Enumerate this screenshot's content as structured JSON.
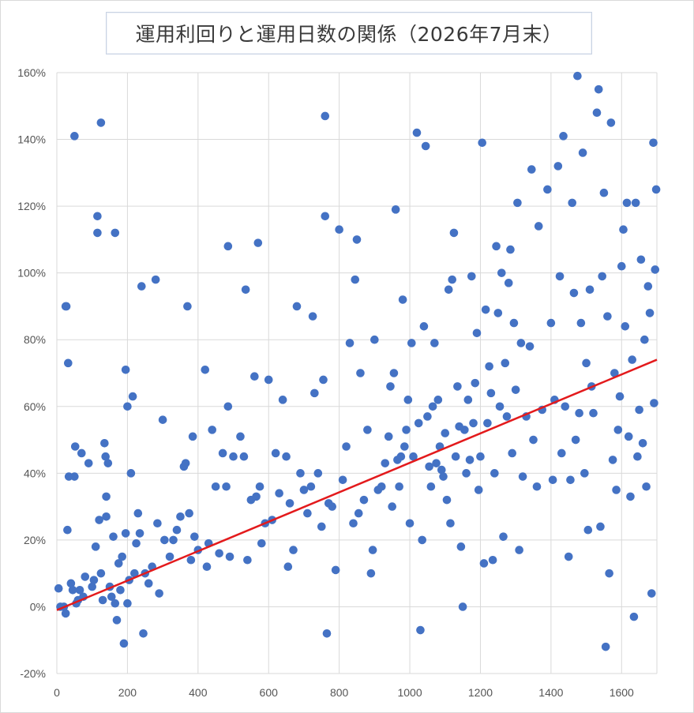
{
  "chart_data": {
    "type": "scatter",
    "title": "運用利回りと運用日数の関係（2026年7月末）",
    "xlabel": "",
    "ylabel": "",
    "xlim": [
      0,
      1700
    ],
    "ylim": [
      -0.2,
      1.6
    ],
    "x_ticks": [
      "0",
      "200",
      "400",
      "600",
      "800",
      "1000",
      "1200",
      "1400",
      "1600"
    ],
    "y_ticks": [
      "-20%",
      "0%",
      "20%",
      "40%",
      "60%",
      "80%",
      "100%",
      "120%",
      "140%",
      "160%"
    ],
    "grid": true,
    "legend": "none",
    "colors": {
      "points": "#4472c4",
      "trendline": "#e31a1c",
      "grid": "#d9d9d9"
    },
    "trendline": {
      "type": "linear",
      "x": [
        0,
        1700
      ],
      "y": [
        -0.01,
        0.74
      ]
    },
    "series": [
      {
        "points": [
          [
            5,
            0.055
          ],
          [
            10,
            0
          ],
          [
            20,
            0
          ],
          [
            25,
            -0.02
          ],
          [
            25,
            0.9
          ],
          [
            27,
            0.9
          ],
          [
            30,
            0.23
          ],
          [
            32,
            0.73
          ],
          [
            34,
            0.39
          ],
          [
            40,
            0.07
          ],
          [
            45,
            0.05
          ],
          [
            50,
            1.41
          ],
          [
            50,
            0.39
          ],
          [
            52,
            0.48
          ],
          [
            55,
            0.01
          ],
          [
            60,
            0.02
          ],
          [
            65,
            0.05
          ],
          [
            70,
            0.46
          ],
          [
            75,
            0.03
          ],
          [
            80,
            0.09
          ],
          [
            90,
            0.43
          ],
          [
            100,
            0.06
          ],
          [
            105,
            0.08
          ],
          [
            110,
            0.18
          ],
          [
            115,
            1.17
          ],
          [
            115,
            1.12
          ],
          [
            120,
            0.26
          ],
          [
            125,
            1.45
          ],
          [
            125,
            0.1
          ],
          [
            130,
            0.02
          ],
          [
            135,
            0.49
          ],
          [
            138,
            0.45
          ],
          [
            140,
            0.33
          ],
          [
            140,
            0.27
          ],
          [
            145,
            0.43
          ],
          [
            150,
            0.06
          ],
          [
            155,
            0.03
          ],
          [
            160,
            0.21
          ],
          [
            165,
            1.12
          ],
          [
            165,
            0.01
          ],
          [
            170,
            -0.04
          ],
          [
            175,
            0.13
          ],
          [
            180,
            0.05
          ],
          [
            185,
            0.15
          ],
          [
            190,
            -0.11
          ],
          [
            195,
            0.22
          ],
          [
            195,
            0.71
          ],
          [
            200,
            0.01
          ],
          [
            200,
            0.6
          ],
          [
            205,
            0.08
          ],
          [
            210,
            0.4
          ],
          [
            215,
            0.63
          ],
          [
            220,
            0.1
          ],
          [
            225,
            0.19
          ],
          [
            230,
            0.28
          ],
          [
            235,
            0.22
          ],
          [
            240,
            0.96
          ],
          [
            245,
            -0.08
          ],
          [
            250,
            0.1
          ],
          [
            260,
            0.07
          ],
          [
            270,
            0.12
          ],
          [
            280,
            0.98
          ],
          [
            285,
            0.25
          ],
          [
            290,
            0.04
          ],
          [
            300,
            0.56
          ],
          [
            305,
            0.2
          ],
          [
            320,
            0.15
          ],
          [
            330,
            0.2
          ],
          [
            340,
            0.23
          ],
          [
            350,
            0.27
          ],
          [
            360,
            0.42
          ],
          [
            365,
            0.43
          ],
          [
            370,
            0.9
          ],
          [
            375,
            0.28
          ],
          [
            380,
            0.14
          ],
          [
            385,
            0.51
          ],
          [
            390,
            0.21
          ],
          [
            400,
            0.17
          ],
          [
            420,
            0.71
          ],
          [
            425,
            0.12
          ],
          [
            430,
            0.19
          ],
          [
            440,
            0.53
          ],
          [
            450,
            0.36
          ],
          [
            460,
            0.16
          ],
          [
            470,
            0.46
          ],
          [
            480,
            0.36
          ],
          [
            485,
            1.08
          ],
          [
            485,
            0.6
          ],
          [
            490,
            0.15
          ],
          [
            500,
            0.45
          ],
          [
            520,
            0.51
          ],
          [
            530,
            0.45
          ],
          [
            535,
            0.95
          ],
          [
            540,
            0.14
          ],
          [
            550,
            0.32
          ],
          [
            560,
            0.69
          ],
          [
            565,
            0.33
          ],
          [
            570,
            1.09
          ],
          [
            575,
            0.36
          ],
          [
            580,
            0.19
          ],
          [
            590,
            0.25
          ],
          [
            600,
            0.68
          ],
          [
            610,
            0.26
          ],
          [
            620,
            0.46
          ],
          [
            630,
            0.34
          ],
          [
            640,
            0.62
          ],
          [
            650,
            0.45
          ],
          [
            655,
            0.12
          ],
          [
            660,
            0.31
          ],
          [
            670,
            0.17
          ],
          [
            680,
            0.9
          ],
          [
            690,
            0.4
          ],
          [
            700,
            0.35
          ],
          [
            710,
            0.28
          ],
          [
            720,
            0.36
          ],
          [
            725,
            0.87
          ],
          [
            730,
            0.64
          ],
          [
            740,
            0.4
          ],
          [
            750,
            0.24
          ],
          [
            755,
            0.68
          ],
          [
            760,
            1.47
          ],
          [
            765,
            -0.08
          ],
          [
            760,
            1.17
          ],
          [
            770,
            0.31
          ],
          [
            780,
            0.3
          ],
          [
            790,
            0.11
          ],
          [
            800,
            1.13
          ],
          [
            810,
            0.38
          ],
          [
            820,
            0.48
          ],
          [
            830,
            0.79
          ],
          [
            840,
            0.25
          ],
          [
            845,
            0.98
          ],
          [
            850,
            1.1
          ],
          [
            855,
            0.28
          ],
          [
            860,
            0.7
          ],
          [
            870,
            0.32
          ],
          [
            880,
            0.53
          ],
          [
            890,
            0.1
          ],
          [
            895,
            0.17
          ],
          [
            900,
            0.8
          ],
          [
            910,
            0.35
          ],
          [
            920,
            0.36
          ],
          [
            930,
            0.43
          ],
          [
            940,
            0.51
          ],
          [
            945,
            0.66
          ],
          [
            950,
            0.3
          ],
          [
            955,
            0.7
          ],
          [
            960,
            1.19
          ],
          [
            965,
            0.44
          ],
          [
            970,
            0.36
          ],
          [
            975,
            0.45
          ],
          [
            980,
            0.92
          ],
          [
            985,
            0.48
          ],
          [
            990,
            0.53
          ],
          [
            995,
            0.62
          ],
          [
            1000,
            0.25
          ],
          [
            1005,
            0.79
          ],
          [
            1010,
            0.45
          ],
          [
            1020,
            1.42
          ],
          [
            1025,
            0.55
          ],
          [
            1030,
            -0.07
          ],
          [
            1035,
            0.2
          ],
          [
            1040,
            0.84
          ],
          [
            1045,
            1.38
          ],
          [
            1050,
            0.57
          ],
          [
            1055,
            0.42
          ],
          [
            1060,
            0.36
          ],
          [
            1065,
            0.6
          ],
          [
            1070,
            0.79
          ],
          [
            1075,
            0.43
          ],
          [
            1080,
            0.62
          ],
          [
            1085,
            0.48
          ],
          [
            1090,
            0.41
          ],
          [
            1095,
            0.39
          ],
          [
            1100,
            0.52
          ],
          [
            1105,
            0.32
          ],
          [
            1110,
            0.95
          ],
          [
            1115,
            0.25
          ],
          [
            1120,
            0.98
          ],
          [
            1125,
            1.12
          ],
          [
            1130,
            0.45
          ],
          [
            1135,
            0.66
          ],
          [
            1140,
            0.54
          ],
          [
            1145,
            0.18
          ],
          [
            1150,
            0.0
          ],
          [
            1155,
            0.53
          ],
          [
            1160,
            0.4
          ],
          [
            1165,
            0.62
          ],
          [
            1170,
            0.44
          ],
          [
            1175,
            0.99
          ],
          [
            1180,
            0.55
          ],
          [
            1185,
            0.67
          ],
          [
            1190,
            0.82
          ],
          [
            1195,
            0.35
          ],
          [
            1200,
            0.45
          ],
          [
            1205,
            1.39
          ],
          [
            1210,
            0.13
          ],
          [
            1215,
            0.89
          ],
          [
            1220,
            0.55
          ],
          [
            1225,
            0.72
          ],
          [
            1230,
            0.64
          ],
          [
            1235,
            0.14
          ],
          [
            1240,
            0.4
          ],
          [
            1245,
            1.08
          ],
          [
            1250,
            0.88
          ],
          [
            1255,
            0.6
          ],
          [
            1260,
            1.0
          ],
          [
            1265,
            0.21
          ],
          [
            1270,
            0.73
          ],
          [
            1275,
            0.57
          ],
          [
            1280,
            0.97
          ],
          [
            1285,
            1.07
          ],
          [
            1290,
            0.46
          ],
          [
            1295,
            0.85
          ],
          [
            1300,
            0.65
          ],
          [
            1305,
            1.21
          ],
          [
            1310,
            0.17
          ],
          [
            1315,
            0.79
          ],
          [
            1320,
            0.39
          ],
          [
            1330,
            0.57
          ],
          [
            1340,
            0.78
          ],
          [
            1345,
            1.31
          ],
          [
            1350,
            0.5
          ],
          [
            1360,
            0.36
          ],
          [
            1365,
            1.14
          ],
          [
            1375,
            0.59
          ],
          [
            1390,
            1.25
          ],
          [
            1400,
            0.85
          ],
          [
            1405,
            0.38
          ],
          [
            1410,
            0.62
          ],
          [
            1420,
            1.32
          ],
          [
            1425,
            0.99
          ],
          [
            1430,
            0.46
          ],
          [
            1435,
            1.41
          ],
          [
            1440,
            0.6
          ],
          [
            1450,
            0.15
          ],
          [
            1455,
            0.38
          ],
          [
            1460,
            1.21
          ],
          [
            1465,
            0.94
          ],
          [
            1470,
            0.5
          ],
          [
            1475,
            1.59
          ],
          [
            1480,
            0.58
          ],
          [
            1485,
            0.85
          ],
          [
            1490,
            1.36
          ],
          [
            1495,
            0.4
          ],
          [
            1500,
            0.73
          ],
          [
            1505,
            0.23
          ],
          [
            1510,
            0.95
          ],
          [
            1515,
            0.66
          ],
          [
            1520,
            0.58
          ],
          [
            1530,
            1.48
          ],
          [
            1535,
            1.55
          ],
          [
            1540,
            0.24
          ],
          [
            1545,
            0.99
          ],
          [
            1550,
            1.24
          ],
          [
            1555,
            -0.12
          ],
          [
            1560,
            0.87
          ],
          [
            1565,
            0.1
          ],
          [
            1570,
            1.45
          ],
          [
            1575,
            0.44
          ],
          [
            1580,
            0.7
          ],
          [
            1585,
            0.35
          ],
          [
            1590,
            0.53
          ],
          [
            1595,
            0.63
          ],
          [
            1600,
            1.02
          ],
          [
            1605,
            1.13
          ],
          [
            1610,
            0.84
          ],
          [
            1615,
            1.21
          ],
          [
            1620,
            0.51
          ],
          [
            1625,
            0.33
          ],
          [
            1630,
            0.74
          ],
          [
            1635,
            -0.03
          ],
          [
            1640,
            1.21
          ],
          [
            1645,
            0.45
          ],
          [
            1650,
            0.59
          ],
          [
            1655,
            1.04
          ],
          [
            1660,
            0.49
          ],
          [
            1665,
            0.8
          ],
          [
            1670,
            0.36
          ],
          [
            1675,
            0.96
          ],
          [
            1680,
            0.88
          ],
          [
            1685,
            0.04
          ],
          [
            1690,
            1.39
          ],
          [
            1692,
            0.61
          ],
          [
            1695,
            1.01
          ],
          [
            1698,
            1.25
          ]
        ]
      }
    ]
  }
}
